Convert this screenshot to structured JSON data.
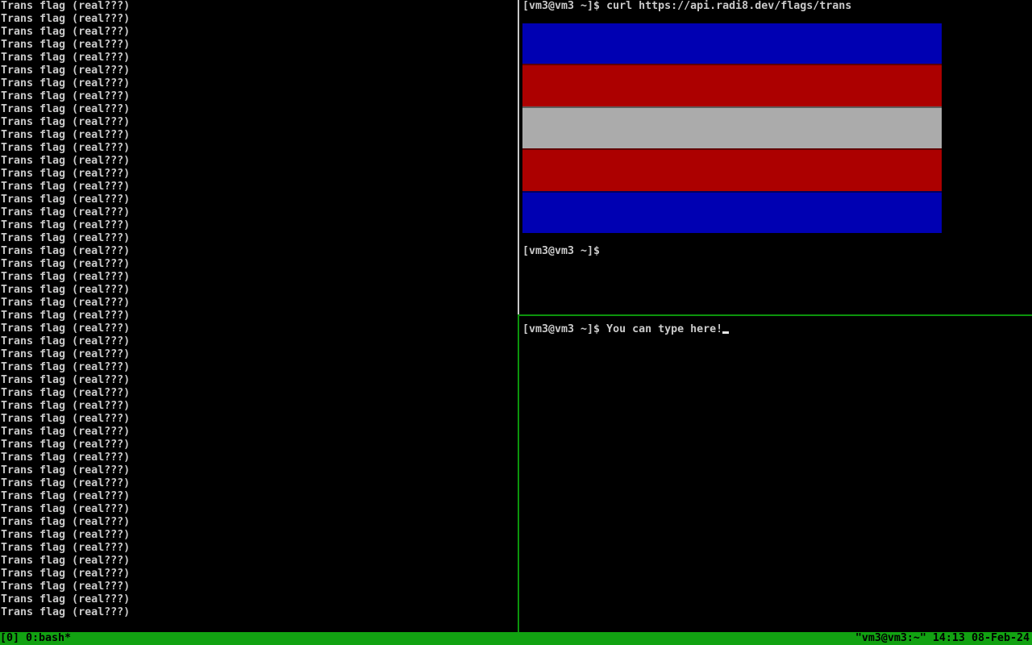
{
  "colors": {
    "background": "#000000",
    "foreground": "#cacaca",
    "inactive_border": "#c8c8c8",
    "active_border": "#0c940c",
    "status_bg": "#12a212",
    "status_fg": "#000000",
    "cursor": "#e6e6e6",
    "flag_blue": "#0000b2",
    "flag_red": "#ac0000",
    "flag_gray": "#ababab"
  },
  "left_pane": {
    "line_text": "Trans flag (real???)",
    "line_count": 48
  },
  "top_right_pane": {
    "command_line": "[vm3@vm3 ~]$ curl https://api.radi8.dev/flags/trans",
    "flag": {
      "name": "trans-flag-terminal-render",
      "stripes": [
        "#0000b2",
        "#ac0000",
        "#ababab",
        "#ac0000",
        "#0000b2"
      ]
    },
    "prompt_after": "[vm3@vm3 ~]$"
  },
  "bottom_right_pane": {
    "prompt_line": "[vm3@vm3 ~]$ You can type here!"
  },
  "status_bar": {
    "left": "[0] 0:bash*",
    "right": "\"vm3@vm3:~\" 14:13 08-Feb-24"
  }
}
